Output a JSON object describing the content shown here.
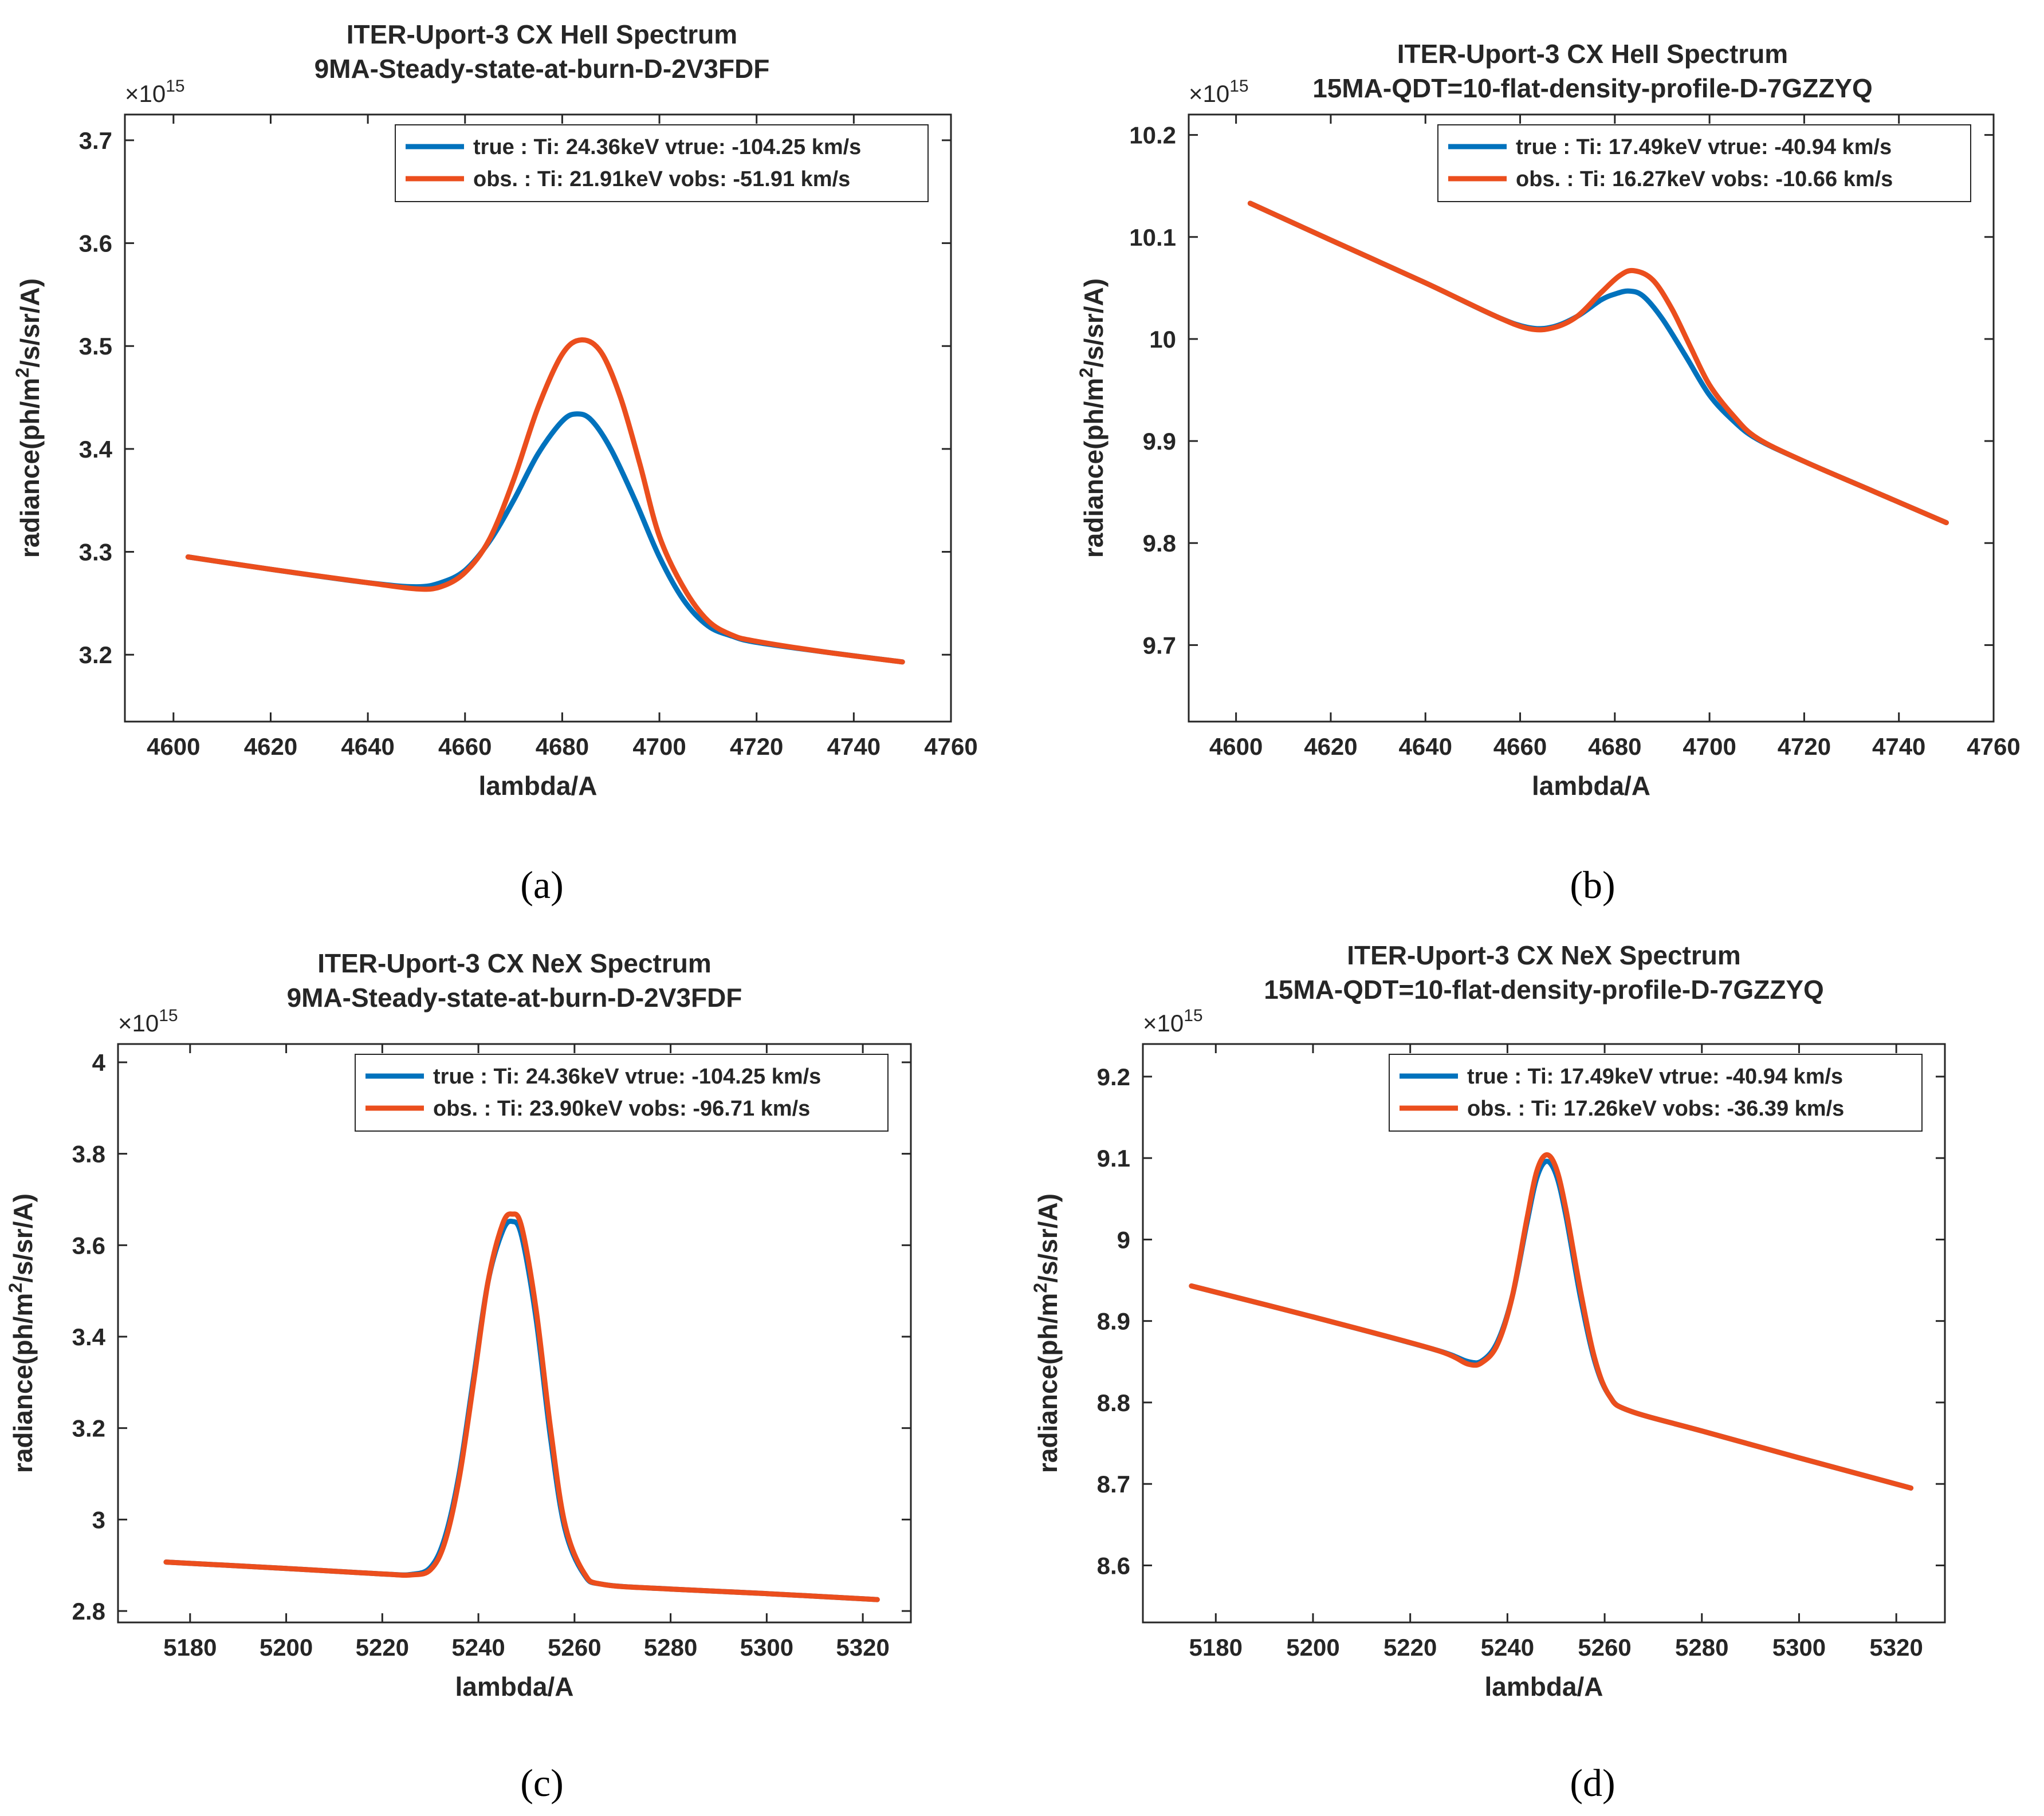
{
  "figure": {
    "captions": [
      "(a)",
      "(b)",
      "(c)",
      "(d)"
    ],
    "colors": {
      "true_series": "#0072BD",
      "obs_series": "#EB4E1D",
      "axes": "#262626"
    }
  },
  "chart_data": [
    {
      "panel": "(a)",
      "type": "line",
      "title": "ITER-Uport-3 CX HeII Spectrum",
      "subtitle": "9MA-Steady-state-at-burn-D-2V3FDF",
      "xlabel": "lambda/A",
      "ylabel": "radiance(ph/m2/s/sr/A)",
      "ylabel_main": "radiance(ph/m",
      "ylabel_sup": "2",
      "ylabel_rest": "/s/sr/A)",
      "exponent_base": "×10",
      "exponent_power": "15",
      "xlim": [
        4590,
        4760
      ],
      "ylim": [
        3.135,
        3.725
      ],
      "xticks": [
        4600,
        4620,
        4640,
        4660,
        4680,
        4700,
        4720,
        4740,
        4760
      ],
      "yticks": [
        3.2,
        3.3,
        3.4,
        3.5,
        3.6,
        3.7
      ],
      "xtick_labels": [
        "4600",
        "4620",
        "4640",
        "4660",
        "4680",
        "4700",
        "4720",
        "4740",
        "4760"
      ],
      "ytick_labels": [
        "3.2",
        "3.3",
        "3.4",
        "3.5",
        "3.6",
        "3.7"
      ],
      "legend": [
        "true : Ti: 24.36keV  vtrue: -104.25 km/s",
        "obs. : Ti: 21.91keV  vobs: -51.91 km/s"
      ],
      "legend_position": "top-right",
      "series": [
        {
          "name": "true",
          "x": [
            4603,
            4620,
            4640,
            4650,
            4655,
            4660,
            4665,
            4670,
            4675,
            4680,
            4683,
            4686,
            4690,
            4695,
            4700,
            4705,
            4710,
            4715,
            4720,
            4735,
            4750
          ],
          "y": [
            3.295,
            3.283,
            3.27,
            3.266,
            3.27,
            3.282,
            3.31,
            3.35,
            3.395,
            3.427,
            3.434,
            3.428,
            3.4,
            3.35,
            3.295,
            3.253,
            3.228,
            3.218,
            3.212,
            3.202,
            3.193
          ]
        },
        {
          "name": "obs.",
          "x": [
            4603,
            4620,
            4640,
            4650,
            4655,
            4660,
            4665,
            4670,
            4675,
            4680,
            4684,
            4688,
            4692,
            4696,
            4700,
            4705,
            4710,
            4715,
            4720,
            4735,
            4750
          ],
          "y": [
            3.295,
            3.283,
            3.27,
            3.264,
            3.266,
            3.28,
            3.312,
            3.37,
            3.44,
            3.492,
            3.506,
            3.494,
            3.45,
            3.385,
            3.315,
            3.265,
            3.233,
            3.219,
            3.213,
            3.202,
            3.193
          ]
        }
      ]
    },
    {
      "panel": "(b)",
      "type": "line",
      "title": "ITER-Uport-3 CX HeII Spectrum",
      "subtitle": "15MA-QDT=10-flat-density-profile-D-7GZZYQ",
      "xlabel": "lambda/A",
      "ylabel": "radiance(ph/m2/s/sr/A)",
      "ylabel_main": "radiance(ph/m",
      "ylabel_sup": "2",
      "ylabel_rest": "/s/sr/A)",
      "exponent_base": "×10",
      "exponent_power": "15",
      "xlim": [
        4590,
        4760
      ],
      "ylim": [
        9.625,
        10.22
      ],
      "xticks": [
        4600,
        4620,
        4640,
        4660,
        4680,
        4700,
        4720,
        4740,
        4760
      ],
      "yticks": [
        9.7,
        9.8,
        9.9,
        10.0,
        10.1,
        10.2
      ],
      "xtick_labels": [
        "4600",
        "4620",
        "4640",
        "4660",
        "4680",
        "4700",
        "4720",
        "4740",
        "4760"
      ],
      "ytick_labels": [
        "9.7",
        "9.8",
        "9.9",
        "10",
        "10.1",
        "10.2"
      ],
      "legend": [
        "true : Ti: 17.49keV  vtrue: -40.94 km/s",
        "obs. : Ti: 16.27keV  vobs: -10.66 km/s"
      ],
      "legend_position": "top-right",
      "series": [
        {
          "name": "true",
          "x": [
            4603,
            4620,
            4640,
            4655,
            4662,
            4667,
            4672,
            4677,
            4680,
            4683,
            4686,
            4690,
            4695,
            4700,
            4705,
            4710,
            4720,
            4735,
            4750
          ],
          "y": [
            10.133,
            10.097,
            10.055,
            10.022,
            10.011,
            10.012,
            10.022,
            10.038,
            10.044,
            10.047,
            10.042,
            10.02,
            9.983,
            9.945,
            9.92,
            9.902,
            9.88,
            9.85,
            9.82
          ]
        },
        {
          "name": "obs.",
          "x": [
            4603,
            4620,
            4640,
            4655,
            4662,
            4667,
            4672,
            4677,
            4681,
            4684,
            4688,
            4692,
            4696,
            4700,
            4705,
            4710,
            4720,
            4735,
            4750
          ],
          "y": [
            10.133,
            10.097,
            10.055,
            10.022,
            10.01,
            10.011,
            10.022,
            10.045,
            10.062,
            10.067,
            10.058,
            10.03,
            9.992,
            9.955,
            9.925,
            9.903,
            9.88,
            9.85,
            9.82
          ]
        }
      ]
    },
    {
      "panel": "(c)",
      "type": "line",
      "title": "ITER-Uport-3 CX NeX Spectrum",
      "subtitle": "9MA-Steady-state-at-burn-D-2V3FDF",
      "xlabel": "lambda/A",
      "ylabel": "radiance(ph/m2/s/sr/A)",
      "ylabel_main": "radiance(ph/m",
      "ylabel_sup": "2",
      "ylabel_rest": "/s/sr/A)",
      "exponent_base": "×10",
      "exponent_power": "15",
      "xlim": [
        5165,
        5330
      ],
      "ylim": [
        2.775,
        4.04
      ],
      "xticks": [
        5180,
        5200,
        5220,
        5240,
        5260,
        5280,
        5300,
        5320
      ],
      "yticks": [
        2.8,
        3.0,
        3.2,
        3.4,
        3.6,
        3.8,
        4.0
      ],
      "xtick_labels": [
        "5180",
        "5200",
        "5220",
        "5240",
        "5260",
        "5280",
        "5300",
        "5320"
      ],
      "ytick_labels": [
        "2.8",
        "3",
        "3.2",
        "3.4",
        "3.6",
        "3.8",
        "4"
      ],
      "legend": [
        "true : Ti: 24.36keV  vtrue: -104.25 km/s",
        "obs. : Ti: 23.90keV  vobs: -96.71 km/s"
      ],
      "legend_position": "top-right",
      "series": [
        {
          "name": "true",
          "x": [
            5175,
            5200,
            5220,
            5226,
            5230,
            5233,
            5236,
            5239,
            5242,
            5245,
            5247,
            5249,
            5252,
            5255,
            5258,
            5262,
            5266,
            5280,
            5300,
            5323
          ],
          "y": [
            2.907,
            2.893,
            2.881,
            2.88,
            2.895,
            2.96,
            3.1,
            3.31,
            3.52,
            3.63,
            3.652,
            3.62,
            3.44,
            3.18,
            2.98,
            2.88,
            2.858,
            2.848,
            2.838,
            2.825
          ]
        },
        {
          "name": "obs.",
          "x": [
            5175,
            5200,
            5220,
            5226,
            5230,
            5233,
            5236,
            5239,
            5242,
            5245,
            5247,
            5249,
            5252,
            5255,
            5258,
            5262,
            5266,
            5280,
            5300,
            5323
          ],
          "y": [
            2.907,
            2.893,
            2.881,
            2.879,
            2.89,
            2.95,
            3.09,
            3.3,
            3.52,
            3.645,
            3.668,
            3.64,
            3.46,
            3.2,
            2.99,
            2.883,
            2.858,
            2.848,
            2.838,
            2.825
          ]
        }
      ]
    },
    {
      "panel": "(d)",
      "type": "line",
      "title": "ITER-Uport-3 CX NeX Spectrum",
      "subtitle": "15MA-QDT=10-flat-density-profile-D-7GZZYQ",
      "xlabel": "lambda/A",
      "ylabel": "radiance(ph/m2/s/sr/A)",
      "ylabel_main": "radiance(ph/m",
      "ylabel_sup": "2",
      "ylabel_rest": "/s/sr/A)",
      "exponent_base": "×10",
      "exponent_power": "15",
      "xlim": [
        5165,
        5330
      ],
      "ylim": [
        8.53,
        9.24
      ],
      "xticks": [
        5180,
        5200,
        5220,
        5240,
        5260,
        5280,
        5300,
        5320
      ],
      "yticks": [
        8.6,
        8.7,
        8.8,
        8.9,
        9.0,
        9.1,
        9.2
      ],
      "xtick_labels": [
        "5180",
        "5200",
        "5220",
        "5240",
        "5260",
        "5280",
        "5300",
        "5320"
      ],
      "ytick_labels": [
        "8.6",
        "8.7",
        "8.8",
        "8.9",
        "9",
        "9.1",
        "9.2"
      ],
      "legend": [
        "true : Ti: 17.49keV  vtrue: -40.94 km/s",
        "obs. : Ti: 17.26keV  vobs: -36.39 km/s"
      ],
      "legend_position": "top-right",
      "series": [
        {
          "name": "true",
          "x": [
            5175,
            5200,
            5225,
            5232,
            5235,
            5238,
            5241,
            5244,
            5246,
            5248,
            5250,
            5252,
            5255,
            5258,
            5261,
            5265,
            5280,
            5300,
            5323
          ],
          "y": [
            8.943,
            8.905,
            8.865,
            8.85,
            8.852,
            8.875,
            8.93,
            9.02,
            9.075,
            9.096,
            9.08,
            9.03,
            8.93,
            8.85,
            8.808,
            8.79,
            8.765,
            8.732,
            8.695
          ]
        },
        {
          "name": "obs.",
          "x": [
            5175,
            5200,
            5225,
            5232,
            5235,
            5238,
            5241,
            5244,
            5246,
            5248,
            5250,
            5252,
            5255,
            5258,
            5261,
            5265,
            5280,
            5300,
            5323
          ],
          "y": [
            8.943,
            8.905,
            8.865,
            8.847,
            8.85,
            8.872,
            8.93,
            9.025,
            9.083,
            9.104,
            9.088,
            9.038,
            8.938,
            8.853,
            8.808,
            8.79,
            8.765,
            8.732,
            8.695
          ]
        }
      ]
    }
  ]
}
